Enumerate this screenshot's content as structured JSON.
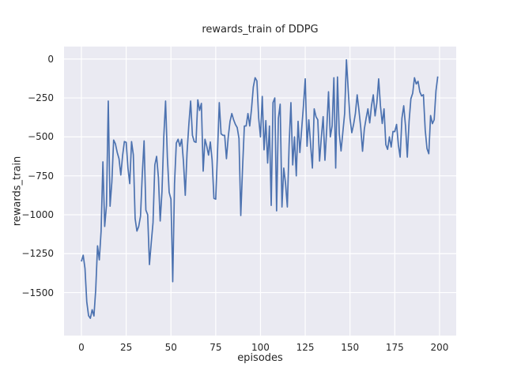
{
  "figure": {
    "title": "rewards_train of DDPG",
    "xlabel": "episodes",
    "ylabel": "rewards_train"
  },
  "chart_data": {
    "type": "line",
    "title": "rewards_train of DDPG",
    "xlabel": "episodes",
    "ylabel": "rewards_train",
    "x_description": "episode index; x value equals array index 0-199",
    "values": [
      -1300,
      -1260,
      -1345,
      -1560,
      -1648,
      -1665,
      -1610,
      -1650,
      -1480,
      -1200,
      -1290,
      -1105,
      -660,
      -1075,
      -940,
      -270,
      -945,
      -790,
      -520,
      -545,
      -600,
      -640,
      -745,
      -620,
      -530,
      -535,
      -700,
      -800,
      -530,
      -615,
      -1025,
      -1105,
      -1075,
      -1010,
      -740,
      -525,
      -970,
      -1000,
      -1320,
      -1180,
      -1050,
      -680,
      -625,
      -760,
      -1040,
      -850,
      -500,
      -270,
      -630,
      -855,
      -900,
      -1430,
      -800,
      -540,
      -515,
      -560,
      -515,
      -660,
      -875,
      -600,
      -420,
      -270,
      -490,
      -530,
      -535,
      -262,
      -330,
      -285,
      -720,
      -515,
      -560,
      -617,
      -533,
      -650,
      -895,
      -900,
      -600,
      -280,
      -480,
      -490,
      -490,
      -640,
      -500,
      -400,
      -350,
      -390,
      -420,
      -440,
      -510,
      -1005,
      -700,
      -430,
      -430,
      -350,
      -430,
      -320,
      -180,
      -120,
      -140,
      -380,
      -500,
      -240,
      -583,
      -395,
      -668,
      -430,
      -940,
      -280,
      -250,
      -975,
      -380,
      -290,
      -950,
      -700,
      -800,
      -950,
      -550,
      -280,
      -680,
      -500,
      -750,
      -400,
      -600,
      -450,
      -300,
      -127,
      -560,
      -390,
      -550,
      -700,
      -320,
      -370,
      -390,
      -655,
      -500,
      -370,
      -650,
      -450,
      -210,
      -500,
      -430,
      -120,
      -700,
      -115,
      -480,
      -590,
      -470,
      -350,
      -5,
      -200,
      -380,
      -473,
      -420,
      -350,
      -230,
      -330,
      -440,
      -592,
      -450,
      -380,
      -320,
      -410,
      -300,
      -230,
      -365,
      -280,
      -127,
      -300,
      -414,
      -320,
      -549,
      -580,
      -500,
      -565,
      -465,
      -466,
      -420,
      -550,
      -630,
      -380,
      -300,
      -430,
      -630,
      -400,
      -255,
      -220,
      -120,
      -160,
      -143,
      -211,
      -237,
      -229,
      -456,
      -575,
      -608,
      -363,
      -415,
      -390,
      -205,
      -112
    ],
    "xticks": [
      0,
      25,
      50,
      75,
      100,
      125,
      150,
      175,
      200
    ],
    "yticks": [
      0,
      -250,
      -500,
      -750,
      -1000,
      -1250,
      -1500
    ],
    "xlim": [
      -9.7,
      209.3
    ],
    "ylim": [
      -1776,
      80
    ],
    "grid": true,
    "legend": "none",
    "style": {
      "line_color": "#4c72b0",
      "line_width": 1.7,
      "axes_background": "#eaeaf2",
      "grid_color": "#ffffff",
      "text_color": "#262626",
      "figure_background": "#ffffff"
    }
  }
}
